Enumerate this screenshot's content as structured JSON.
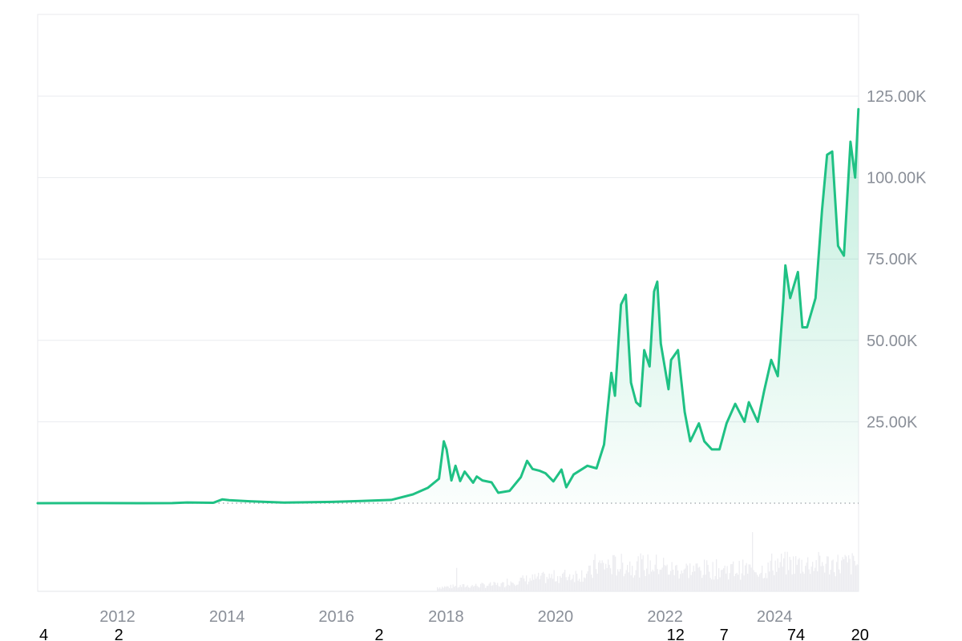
{
  "chart_data": {
    "type": "area",
    "title": "",
    "xlabel": "",
    "ylabel": "",
    "xlim": [
      "2010-07-18",
      "2025-07-15"
    ],
    "ylim": [
      0,
      150000
    ],
    "grid": true,
    "legend": "none",
    "y_ticks": [
      {
        "value": 25000,
        "label": "25.00K"
      },
      {
        "value": 50000,
        "label": "50.00K"
      },
      {
        "value": 75000,
        "label": "75.00K"
      },
      {
        "value": 100000,
        "label": "100.00K"
      },
      {
        "value": 125000,
        "label": "125.00K"
      }
    ],
    "x_ticks": [
      "2012",
      "2014",
      "2016",
      "2018",
      "2020",
      "2022",
      "2024"
    ],
    "series": [
      {
        "color": "#1fc184",
        "points": [
          [
            "2010-07-18",
            0.1
          ],
          [
            "2011-06-08",
            30
          ],
          [
            "2012-06-01",
            5
          ],
          [
            "2013-01-01",
            13
          ],
          [
            "2013-04-10",
            230
          ],
          [
            "2013-10-01",
            130
          ],
          [
            "2013-11-30",
            1150
          ],
          [
            "2014-01-15",
            900
          ],
          [
            "2014-06-01",
            600
          ],
          [
            "2015-01-15",
            200
          ],
          [
            "2015-12-01",
            400
          ],
          [
            "2016-06-15",
            700
          ],
          [
            "2017-01-01",
            1000
          ],
          [
            "2017-05-25",
            2700
          ],
          [
            "2017-09-01",
            4700
          ],
          [
            "2017-11-15",
            7500
          ],
          [
            "2017-12-17",
            19000
          ],
          [
            "2018-01-05",
            16500
          ],
          [
            "2018-02-06",
            7000
          ],
          [
            "2018-03-05",
            11500
          ],
          [
            "2018-04-05",
            6800
          ],
          [
            "2018-05-05",
            9700
          ],
          [
            "2018-07-01",
            6300
          ],
          [
            "2018-07-25",
            8200
          ],
          [
            "2018-09-01",
            7000
          ],
          [
            "2018-11-01",
            6400
          ],
          [
            "2018-12-15",
            3200
          ],
          [
            "2019-03-01",
            3800
          ],
          [
            "2019-05-15",
            8000
          ],
          [
            "2019-06-26",
            13000
          ],
          [
            "2019-08-01",
            10500
          ],
          [
            "2019-09-15",
            10000
          ],
          [
            "2019-10-26",
            9200
          ],
          [
            "2019-12-18",
            6700
          ],
          [
            "2020-02-10",
            10300
          ],
          [
            "2020-03-13",
            4900
          ],
          [
            "2020-05-01",
            8800
          ],
          [
            "2020-08-01",
            11500
          ],
          [
            "2020-10-01",
            10700
          ],
          [
            "2020-11-20",
            18000
          ],
          [
            "2021-01-08",
            40000
          ],
          [
            "2021-02-01",
            33000
          ],
          [
            "2021-03-13",
            61000
          ],
          [
            "2021-04-14",
            64000
          ],
          [
            "2021-05-19",
            37000
          ],
          [
            "2021-06-22",
            31000
          ],
          [
            "2021-07-20",
            29800
          ],
          [
            "2021-08-15",
            47000
          ],
          [
            "2021-09-20",
            42000
          ],
          [
            "2021-10-20",
            65000
          ],
          [
            "2021-11-10",
            68000
          ],
          [
            "2021-12-04",
            49000
          ],
          [
            "2022-01-24",
            35000
          ],
          [
            "2022-02-10",
            44000
          ],
          [
            "2022-03-28",
            47000
          ],
          [
            "2022-05-12",
            28000
          ],
          [
            "2022-06-18",
            19000
          ],
          [
            "2022-08-15",
            24500
          ],
          [
            "2022-09-20",
            19000
          ],
          [
            "2022-11-09",
            16500
          ],
          [
            "2022-12-30",
            16500
          ],
          [
            "2023-02-15",
            24500
          ],
          [
            "2023-04-14",
            30500
          ],
          [
            "2023-06-15",
            25000
          ],
          [
            "2023-07-14",
            31000
          ],
          [
            "2023-09-11",
            25000
          ],
          [
            "2023-10-24",
            34500
          ],
          [
            "2023-12-10",
            44000
          ],
          [
            "2024-01-23",
            39000
          ],
          [
            "2024-02-29",
            62000
          ],
          [
            "2024-03-14",
            73000
          ],
          [
            "2024-04-15",
            63000
          ],
          [
            "2024-06-05",
            71000
          ],
          [
            "2024-07-05",
            54000
          ],
          [
            "2024-08-05",
            54000
          ],
          [
            "2024-10-01",
            63000
          ],
          [
            "2024-11-13",
            90000
          ],
          [
            "2024-12-17",
            107000
          ],
          [
            "2025-01-20",
            108000
          ],
          [
            "2025-02-28",
            79000
          ],
          [
            "2025-04-08",
            76000
          ],
          [
            "2025-05-22",
            111000
          ],
          [
            "2025-06-22",
            100000
          ],
          [
            "2025-07-14",
            121000
          ]
        ]
      }
    ],
    "bottom_row_labels": [
      {
        "text": "4",
        "x": "2010-07-18"
      },
      {
        "text": "2",
        "x": "2011-12-01"
      },
      {
        "text": "2",
        "x": "2016-09-01"
      },
      {
        "text": "12",
        "x": "2022-01-01"
      },
      {
        "text": "7",
        "x": "2022-12-20"
      },
      {
        "text": "74",
        "x": "2024-03-15"
      },
      {
        "text": "20",
        "x": "2025-05-15"
      }
    ]
  }
}
